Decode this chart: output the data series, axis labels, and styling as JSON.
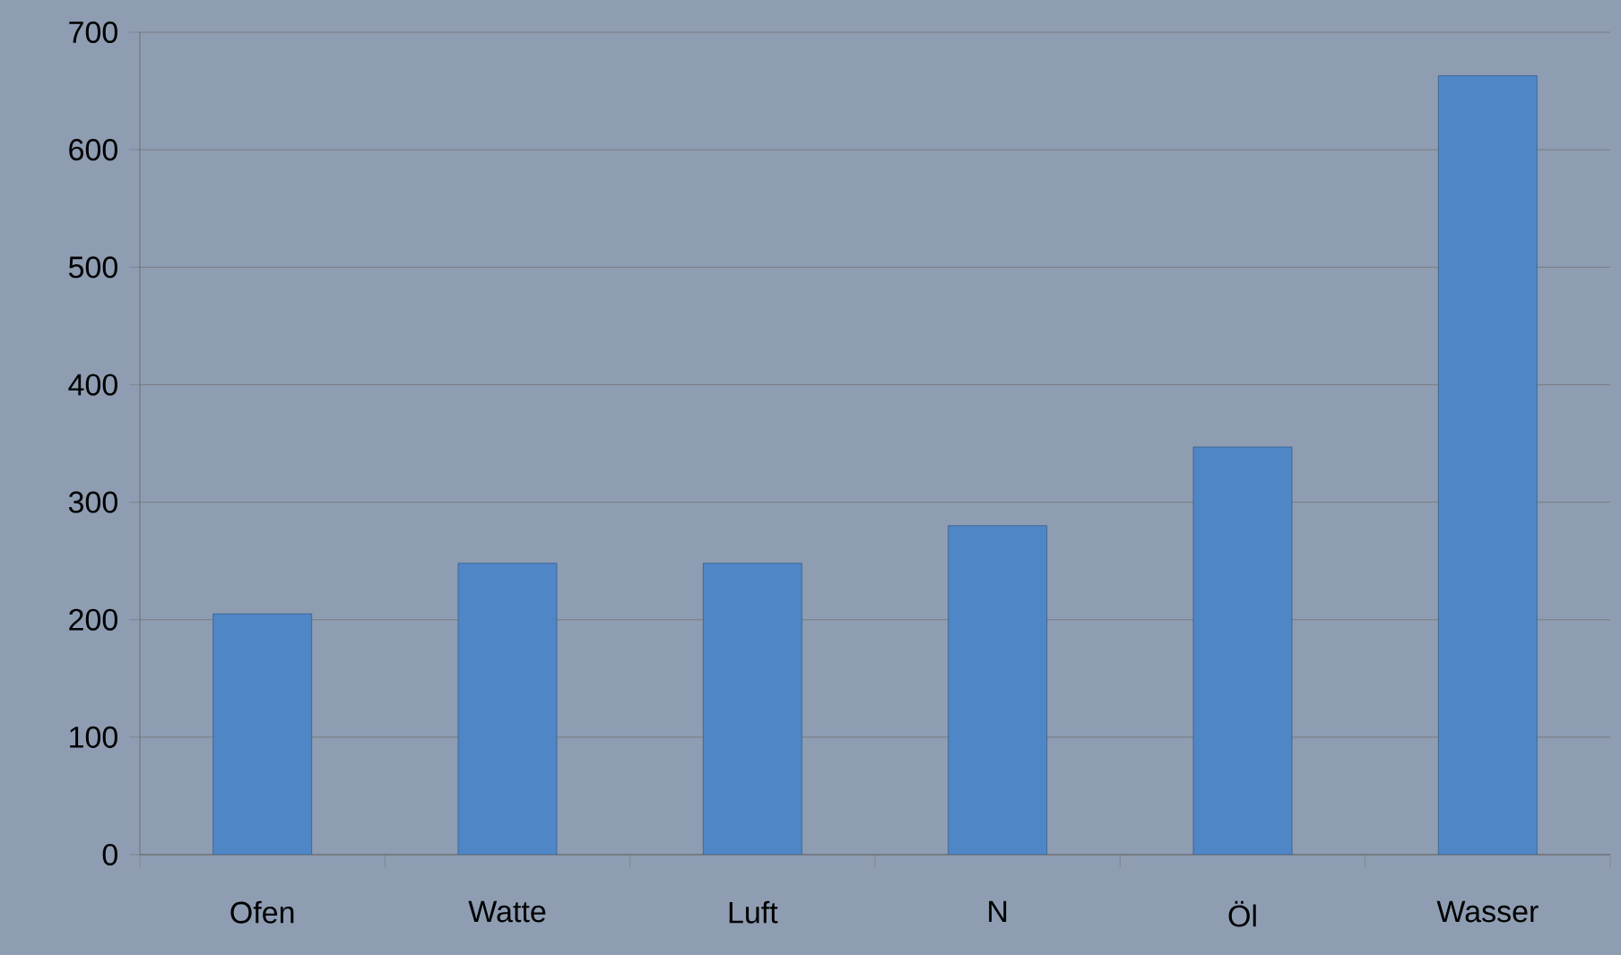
{
  "chart_data": {
    "type": "bar",
    "categories": [
      "Ofen",
      "Watte",
      "Luft",
      "N",
      "Öl",
      "Wasser"
    ],
    "values": [
      205,
      248,
      248,
      280,
      347,
      663
    ],
    "color": "#4f86c6",
    "ylim": [
      0,
      700
    ],
    "yticks": [
      0,
      100,
      200,
      300,
      400,
      500,
      600,
      700
    ],
    "grid": "y"
  }
}
